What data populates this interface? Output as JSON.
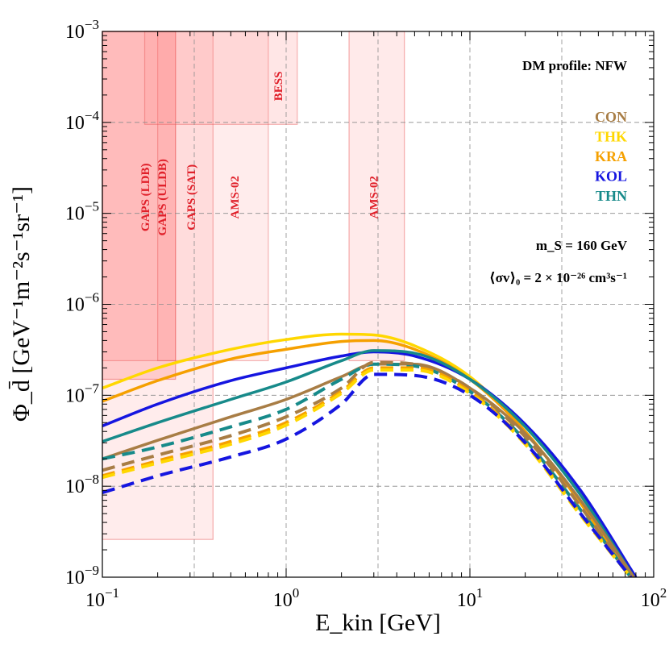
{
  "chart_data": {
    "type": "line",
    "title": "",
    "xlabel": "E_kin [GeV]",
    "ylabel": "Φ_d̄ [GeV⁻¹m⁻²s⁻¹sr⁻¹]",
    "xscale": "log",
    "yscale": "log",
    "xlim": [
      0.1,
      100
    ],
    "ylim": [
      1e-09,
      0.001
    ],
    "grid": "dashed at decades and half-decades",
    "x_ticks": [
      {
        "value": 0.1,
        "base": "10",
        "exp": "−1"
      },
      {
        "value": 1,
        "base": "10",
        "exp": "0"
      },
      {
        "value": 10,
        "base": "10",
        "exp": "1"
      },
      {
        "value": 100,
        "base": "10",
        "exp": "2"
      }
    ],
    "y_ticks": [
      {
        "value": 1e-09,
        "base": "10",
        "exp": "−9"
      },
      {
        "value": 1e-08,
        "base": "10",
        "exp": "−8"
      },
      {
        "value": 1e-07,
        "base": "10",
        "exp": "−7"
      },
      {
        "value": 1e-06,
        "base": "10",
        "exp": "−6"
      },
      {
        "value": 1e-05,
        "base": "10",
        "exp": "−5"
      },
      {
        "value": 0.0001,
        "base": "10",
        "exp": "−4"
      },
      {
        "value": 0.001,
        "base": "10",
        "exp": "−3"
      }
    ],
    "annotations": {
      "profile": "DM profile: NFW",
      "mass": "m_S = 160 GeV",
      "cross_section": "⟨σv⟩₀ = 2 × 10⁻²⁶ cm³s⁻¹"
    },
    "legend": [
      {
        "name": "CON",
        "color": "#a87d45"
      },
      {
        "name": "THK",
        "color": "#ffd700"
      },
      {
        "name": "KRA",
        "color": "#f5a000"
      },
      {
        "name": "KOL",
        "color": "#1515e0"
      },
      {
        "name": "THN",
        "color": "#178a8a"
      }
    ],
    "sensitivity_regions": [
      {
        "name": "GAPS (LDB)",
        "emin": 0.1,
        "emax": 0.25,
        "flux": 1.5e-07
      },
      {
        "name": "GAPS (ULDB)",
        "emin": 0.1,
        "emax": 0.25,
        "flux": 2.4e-07
      },
      {
        "name": "GAPS (SAT)",
        "emin": 0.1,
        "emax": 0.4,
        "flux": 2.6e-09
      },
      {
        "name": "AMS-02",
        "emin": 0.2,
        "emax": 0.8,
        "flux": 2.4e-07
      },
      {
        "name": "BESS",
        "emin": 0.17,
        "emax": 1.15,
        "flux": 9.5e-05
      },
      {
        "name": "AMS-02",
        "emin": 2.2,
        "emax": 4.4,
        "flux": 2.4e-07
      }
    ],
    "series": [
      {
        "name": "THK",
        "style": "solid",
        "color": "#ffd700",
        "points": [
          [
            0.1,
            1.2e-07
          ],
          [
            0.2,
            2e-07
          ],
          [
            0.5,
            3.2e-07
          ],
          [
            1,
            4.1e-07
          ],
          [
            2,
            4.7e-07
          ],
          [
            3,
            4.6e-07
          ],
          [
            5,
            3.5e-07
          ],
          [
            10,
            1.6e-07
          ],
          [
            20,
            4e-08
          ],
          [
            40,
            6.5e-09
          ],
          [
            75,
            1e-09
          ]
        ]
      },
      {
        "name": "KRA",
        "style": "solid",
        "color": "#f5a000",
        "points": [
          [
            0.1,
            8.6e-08
          ],
          [
            0.2,
            1.45e-07
          ],
          [
            0.5,
            2.5e-07
          ],
          [
            1,
            3.2e-07
          ],
          [
            2,
            3.9e-07
          ],
          [
            3,
            4e-07
          ],
          [
            5,
            3.2e-07
          ],
          [
            10,
            1.5e-07
          ],
          [
            20,
            4e-08
          ],
          [
            40,
            6.5e-09
          ],
          [
            75,
            1e-09
          ]
        ]
      },
      {
        "name": "KOL",
        "style": "solid",
        "color": "#1515e0",
        "points": [
          [
            0.1,
            4.6e-08
          ],
          [
            0.2,
            8e-08
          ],
          [
            0.5,
            1.45e-07
          ],
          [
            1,
            2e-07
          ],
          [
            2,
            2.7e-07
          ],
          [
            3,
            3e-07
          ],
          [
            5,
            2.7e-07
          ],
          [
            10,
            1.5e-07
          ],
          [
            20,
            4.8e-08
          ],
          [
            40,
            9e-09
          ],
          [
            80,
            1e-09
          ]
        ]
      },
      {
        "name": "THN",
        "style": "solid",
        "color": "#178a8a",
        "points": [
          [
            0.1,
            3.1e-08
          ],
          [
            0.2,
            5e-08
          ],
          [
            0.5,
            9e-08
          ],
          [
            1,
            1.4e-07
          ],
          [
            2,
            2.4e-07
          ],
          [
            3,
            3.1e-07
          ],
          [
            5,
            2.9e-07
          ],
          [
            10,
            1.5e-07
          ],
          [
            20,
            4.5e-08
          ],
          [
            40,
            8e-09
          ],
          [
            78,
            1e-09
          ]
        ]
      },
      {
        "name": "CON",
        "style": "solid",
        "color": "#a87d45",
        "points": [
          [
            0.1,
            2e-08
          ],
          [
            0.2,
            3.2e-08
          ],
          [
            0.5,
            5.8e-08
          ],
          [
            1,
            9e-08
          ],
          [
            2,
            1.6e-07
          ],
          [
            3,
            2.2e-07
          ],
          [
            5,
            2.2e-07
          ],
          [
            10,
            1.2e-07
          ],
          [
            20,
            3.8e-08
          ],
          [
            40,
            7e-09
          ],
          [
            78,
            1e-09
          ]
        ]
      },
      {
        "name": "THN",
        "style": "dashed",
        "color": "#178a8a",
        "points": [
          [
            0.1,
            2e-08
          ],
          [
            0.2,
            2.7e-08
          ],
          [
            0.5,
            4.5e-08
          ],
          [
            1,
            7e-08
          ],
          [
            2,
            1.5e-07
          ],
          [
            3,
            2.2e-07
          ],
          [
            5,
            2.1e-07
          ],
          [
            10,
            1.1e-07
          ],
          [
            20,
            3.2e-08
          ],
          [
            40,
            5.5e-09
          ],
          [
            75,
            1e-09
          ]
        ]
      },
      {
        "name": "CON",
        "style": "dashed",
        "color": "#a87d45",
        "points": [
          [
            0.1,
            1.5e-08
          ],
          [
            0.2,
            2.2e-08
          ],
          [
            0.5,
            3.6e-08
          ],
          [
            1,
            5.8e-08
          ],
          [
            2,
            1.2e-07
          ],
          [
            3,
            2.3e-07
          ],
          [
            5,
            2.2e-07
          ],
          [
            10,
            1.2e-07
          ],
          [
            20,
            3.5e-08
          ],
          [
            40,
            6e-09
          ],
          [
            75,
            1e-09
          ]
        ]
      },
      {
        "name": "KRA",
        "style": "dashed",
        "color": "#f5a000",
        "points": [
          [
            0.1,
            1.3e-08
          ],
          [
            0.2,
            1.9e-08
          ],
          [
            0.5,
            3.1e-08
          ],
          [
            1,
            5e-08
          ],
          [
            2,
            1.1e-07
          ],
          [
            3,
            2e-07
          ],
          [
            5,
            2e-07
          ],
          [
            10,
            1.1e-07
          ],
          [
            20,
            3e-08
          ],
          [
            40,
            5e-09
          ],
          [
            75,
            1e-09
          ]
        ]
      },
      {
        "name": "THK",
        "style": "dashed",
        "color": "#ffd700",
        "points": [
          [
            0.1,
            1.25e-08
          ],
          [
            0.2,
            1.8e-08
          ],
          [
            0.5,
            2.9e-08
          ],
          [
            1,
            4.7e-08
          ],
          [
            2,
            1.05e-07
          ],
          [
            3,
            1.9e-07
          ],
          [
            5,
            1.9e-07
          ],
          [
            10,
            1.05e-07
          ],
          [
            20,
            2.9e-08
          ],
          [
            40,
            4.8e-09
          ],
          [
            75,
            1e-09
          ]
        ]
      },
      {
        "name": "KOL",
        "style": "dashed",
        "color": "#1515e0",
        "points": [
          [
            0.1,
            8.5e-09
          ],
          [
            0.2,
            1.3e-08
          ],
          [
            0.5,
            2.1e-08
          ],
          [
            1,
            3.3e-08
          ],
          [
            2,
            8e-08
          ],
          [
            3,
            1.7e-07
          ],
          [
            5,
            1.65e-07
          ],
          [
            10,
            1e-07
          ],
          [
            20,
            3e-08
          ],
          [
            40,
            5e-09
          ],
          [
            75,
            1e-09
          ]
        ]
      }
    ]
  }
}
